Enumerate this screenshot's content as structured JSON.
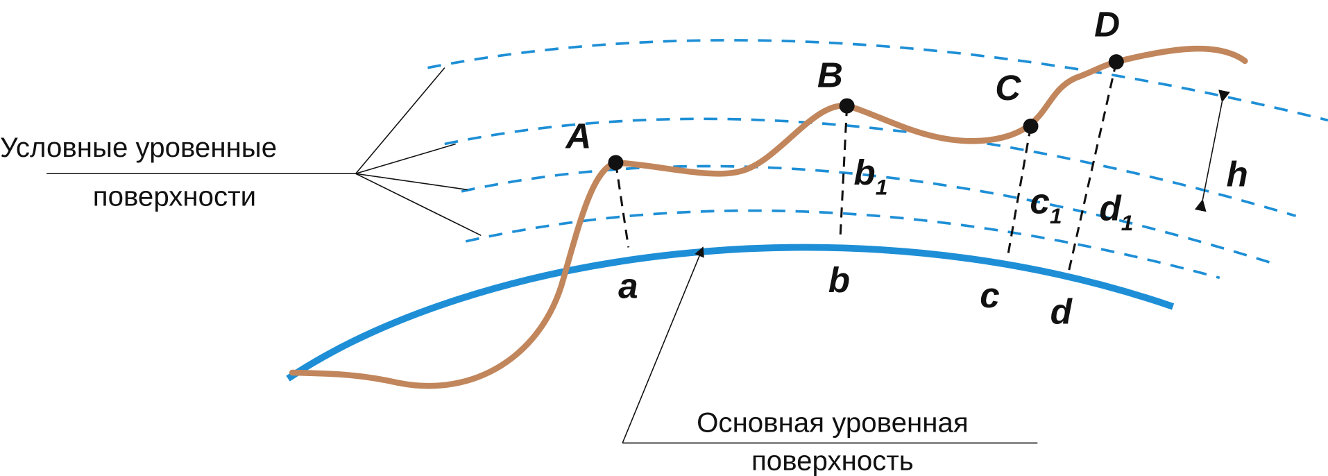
{
  "colors": {
    "level_surface": "#1e8fd6",
    "terrain": "#c1865c",
    "ink": "#111111"
  },
  "points": [
    {
      "upper": "A",
      "lower": "a"
    },
    {
      "upper": "B",
      "lower": "b",
      "mid": "b",
      "mid_sub": "1"
    },
    {
      "upper": "C",
      "lower": "c",
      "mid": "c",
      "mid_sub": "1"
    },
    {
      "upper": "D",
      "lower": "d",
      "mid": "d",
      "mid_sub": "1"
    }
  ],
  "height_label": "h",
  "captions": {
    "conditional_line1": "Условные уровенные",
    "conditional_line2": "поверхности",
    "main_line1": "Основная уровенная",
    "main_line2": "поверхность"
  }
}
